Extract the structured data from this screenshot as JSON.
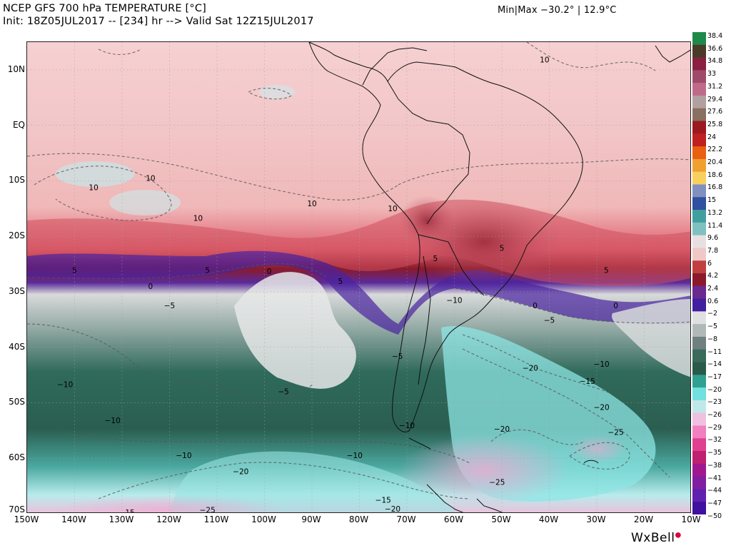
{
  "header": {
    "title_line1": "NCEP GFS 700 hPa TEMPERATURE [°C]",
    "title_line2": "Init: 18Z05JUL2017 -- [234] hr --> Valid Sat 12Z15JUL2017",
    "minmax": "Min|Max −30.2° | 12.9°C"
  },
  "map": {
    "lat_labels": [
      "10N",
      "EQ",
      "10S",
      "20S",
      "30S",
      "40S",
      "50S",
      "60S",
      "70S"
    ],
    "lon_labels": [
      "150W",
      "140W",
      "130W",
      "120W",
      "110W",
      "100W",
      "90W",
      "80W",
      "70W",
      "60W",
      "50W",
      "40W",
      "30W",
      "20W",
      "10W"
    ],
    "contour_labels": [
      {
        "text": "10",
        "lon": -41,
        "lat": 11.7
      },
      {
        "text": "10",
        "lon": -136,
        "lat": -11.3
      },
      {
        "text": "10",
        "lon": -124,
        "lat": -9.6
      },
      {
        "text": "10",
        "lon": -114,
        "lat": -16.8
      },
      {
        "text": "10",
        "lon": -90,
        "lat": -14.2
      },
      {
        "text": "10",
        "lon": -73,
        "lat": -15.1
      },
      {
        "text": "5",
        "lon": -140,
        "lat": -26.2
      },
      {
        "text": "5",
        "lon": -112,
        "lat": -26.2
      },
      {
        "text": "5",
        "lon": -84,
        "lat": -28.2
      },
      {
        "text": "5",
        "lon": -64,
        "lat": -24.1
      },
      {
        "text": "5",
        "lon": -50,
        "lat": -22.2
      },
      {
        "text": "5",
        "lon": -28,
        "lat": -26.2
      },
      {
        "text": "0",
        "lon": -124,
        "lat": -29.1
      },
      {
        "text": "0",
        "lon": -99,
        "lat": -26.4
      },
      {
        "text": "0",
        "lon": -43,
        "lat": -32.6
      },
      {
        "text": "0",
        "lon": -26,
        "lat": -32.6
      },
      {
        "text": "−5",
        "lon": -120,
        "lat": -32.6
      },
      {
        "text": "−5",
        "lon": -40,
        "lat": -35.2
      },
      {
        "text": "−5",
        "lon": -96,
        "lat": -48.1
      },
      {
        "text": "−5",
        "lon": -72,
        "lat": -41.7
      },
      {
        "text": "−10",
        "lon": -60,
        "lat": -31.6
      },
      {
        "text": "−10",
        "lon": -142,
        "lat": -46.8
      },
      {
        "text": "−10",
        "lon": -132,
        "lat": -53.3
      },
      {
        "text": "−10",
        "lon": -117,
        "lat": -59.6
      },
      {
        "text": "−10",
        "lon": -81,
        "lat": -59.6
      },
      {
        "text": "−10",
        "lon": -29,
        "lat": -43.1
      },
      {
        "text": "−10",
        "lon": -70,
        "lat": -54.2
      },
      {
        "text": "−15",
        "lon": -32,
        "lat": -46.2
      },
      {
        "text": "−15",
        "lon": -75,
        "lat": -67.6
      },
      {
        "text": "−15",
        "lon": -129,
        "lat": -69.9
      },
      {
        "text": "−20",
        "lon": -44,
        "lat": -43.8
      },
      {
        "text": "−20",
        "lon": -29,
        "lat": -50.9
      },
      {
        "text": "−20",
        "lon": -50,
        "lat": -54.8
      },
      {
        "text": "−20",
        "lon": -105,
        "lat": -62.5
      },
      {
        "text": "−20",
        "lon": -73,
        "lat": -69.2
      },
      {
        "text": "−25",
        "lon": -26,
        "lat": -55.4
      },
      {
        "text": "−25",
        "lon": -51,
        "lat": -64.4
      },
      {
        "text": "−25",
        "lon": -112,
        "lat": -69.4
      }
    ]
  },
  "colorbar": {
    "labels": [
      "38.4",
      "36.6",
      "34.8",
      "33",
      "31.2",
      "29.4",
      "27.6",
      "25.8",
      "24",
      "22.2",
      "20.4",
      "18.6",
      "16.8",
      "15",
      "13.2",
      "11.4",
      "9.6",
      "7.8",
      "6",
      "4.2",
      "2.4",
      "0.6",
      "−2",
      "−5",
      "−8",
      "−11",
      "−14",
      "−17",
      "−20",
      "−23",
      "−26",
      "−29",
      "−32",
      "−35",
      "−38",
      "−41",
      "−44",
      "−47",
      "−50"
    ],
    "colors": [
      "#1e8a4a",
      "#4a3a2a",
      "#8a2040",
      "#a04a6a",
      "#c06a8a",
      "#b0a0a0",
      "#8a7060",
      "#9a1a20",
      "#c02020",
      "#e86010",
      "#f0a030",
      "#f8d060",
      "#8090c0",
      "#3050a0",
      "#40a0a0",
      "#80c0c0",
      "#e8e0e0",
      "#f0c8c8",
      "#c04040",
      "#8a1a2a",
      "#6a2a90",
      "#4020a0",
      "#e0e0e0",
      "#b0b8b8",
      "#708080",
      "#3a6a5a",
      "#2a5a4a",
      "#30a090",
      "#70e0e0",
      "#c0e8e8",
      "#f0c0e0",
      "#f080c0",
      "#e04090",
      "#c02070",
      "#a01890",
      "#8020a0",
      "#6020b0",
      "#4010a0"
    ]
  },
  "logo": {
    "text": "WxBell"
  }
}
